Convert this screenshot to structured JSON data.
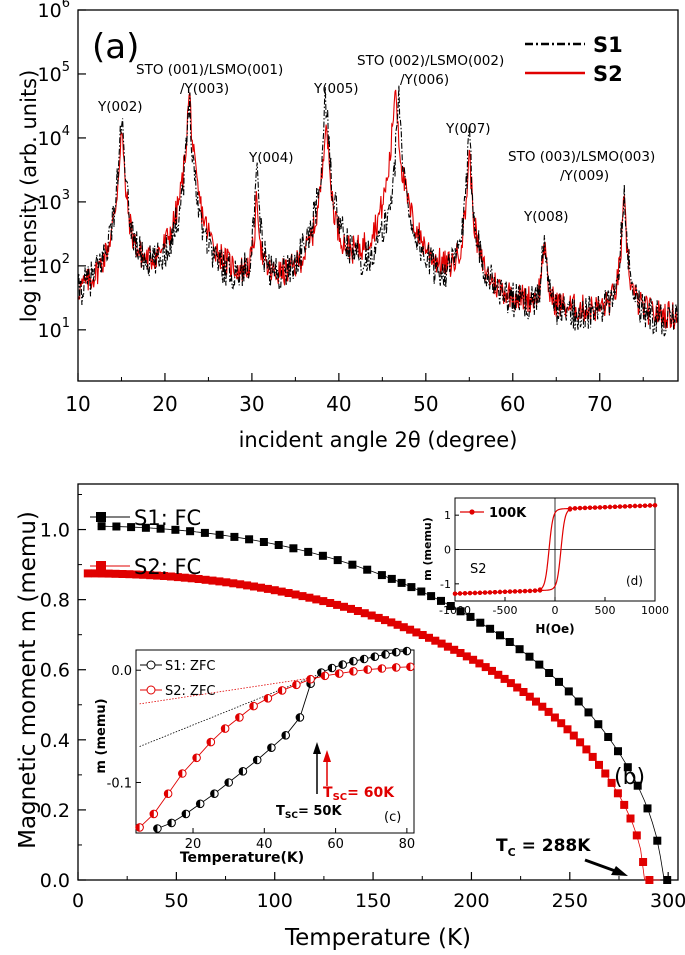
{
  "figure": {
    "caption_top": "(a)",
    "caption_bottom": "(b)"
  },
  "chart_data": [
    {
      "id": "a",
      "type": "line",
      "title": "(a)",
      "xlabel": "incident angle 2θ (degree)",
      "ylabel": "log intensity (arb. units)",
      "xlim": [
        10,
        79
      ],
      "ylim_log10": [
        0.2,
        6
      ],
      "x_ticks": [
        "10",
        "20",
        "30",
        "40",
        "50",
        "60",
        "70"
      ],
      "y_ticks": [
        "10",
        "10",
        "10",
        "10",
        "10",
        "10"
      ],
      "y_exps": [
        "1",
        "2",
        "3",
        "4",
        "5",
        "6"
      ],
      "legend": [
        "S1",
        "S2"
      ],
      "colors": {
        "S1": "#000000",
        "S2": "#e00000"
      },
      "peaks_S1": [
        {
          "x": 15.0,
          "h": 4.3
        },
        {
          "x": 22.8,
          "h": 4.6
        },
        {
          "x": 30.6,
          "h": 3.4
        },
        {
          "x": 38.5,
          "h": 4.6
        },
        {
          "x": 46.9,
          "h": 4.6
        },
        {
          "x": 55.0,
          "h": 3.95
        },
        {
          "x": 63.6,
          "h": 2.5
        },
        {
          "x": 72.8,
          "h": 3.15
        }
      ],
      "peaks_S2": [
        {
          "x": 15.0,
          "h": 4.1
        },
        {
          "x": 22.8,
          "h": 4.65
        },
        {
          "x": 30.6,
          "h": 3.0
        },
        {
          "x": 38.5,
          "h": 4.3
        },
        {
          "x": 46.5,
          "h": 4.8
        },
        {
          "x": 55.0,
          "h": 3.7
        },
        {
          "x": 63.6,
          "h": 2.3
        },
        {
          "x": 72.8,
          "h": 2.9
        }
      ],
      "annotations": [
        {
          "text": "Y(002)"
        },
        {
          "text": "STO (001)/LSMO(001)"
        },
        {
          "text": "/Y(003)"
        },
        {
          "text": "Y(004)"
        },
        {
          "text": "Y(005)"
        },
        {
          "text": "STO (002)/LSMO(002)"
        },
        {
          "text": "/Y(006)"
        },
        {
          "text": "Y(007)"
        },
        {
          "text": "STO (003)/LSMO(003)"
        },
        {
          "text": "/Y(009)"
        },
        {
          "text": "Y(008)"
        }
      ]
    },
    {
      "id": "b",
      "type": "scatter",
      "title": "(b)",
      "xlabel": "Temperature (K)",
      "ylabel": "Magnetic moment m (memu)",
      "xlim": [
        0,
        305
      ],
      "ylim": [
        0,
        1.13
      ],
      "x_ticks": [
        "0",
        "50",
        "100",
        "150",
        "200",
        "250",
        "300"
      ],
      "y_ticks": [
        "0.0",
        "0.2",
        "0.4",
        "0.6",
        "0.8",
        "1.0"
      ],
      "series": [
        {
          "name": "S1: FC",
          "color": "#000000",
          "m0": 1.01,
          "tc": 297
        },
        {
          "name": "S2: FC",
          "color": "#e00000",
          "m0": 0.875,
          "tc": 288
        }
      ],
      "annotation": {
        "main": "T",
        "sub": "C",
        "rest": " = 288K"
      }
    },
    {
      "id": "c",
      "type": "scatter",
      "title": "(c)",
      "xlabel": "Temperature(K)",
      "ylabel": "m (memu)",
      "xlim": [
        4,
        82
      ],
      "ylim": [
        -0.145,
        0.018
      ],
      "x_ticks": [
        "20",
        "40",
        "60",
        "80"
      ],
      "y_ticks": [
        "0.0",
        "-0.1"
      ],
      "series": [
        {
          "name": "S1: ZFC",
          "color": "#000000",
          "points": [
            [
              10,
              -0.141
            ],
            [
              14,
              -0.136
            ],
            [
              18,
              -0.128
            ],
            [
              22,
              -0.119
            ],
            [
              26,
              -0.11
            ],
            [
              30,
              -0.1
            ],
            [
              34,
              -0.09
            ],
            [
              38,
              -0.08
            ],
            [
              42,
              -0.069
            ],
            [
              46,
              -0.058
            ],
            [
              50,
              -0.042
            ],
            [
              53,
              -0.012
            ],
            [
              56,
              -0.002
            ],
            [
              59,
              0.002
            ],
            [
              62,
              0.005
            ],
            [
              65,
              0.008
            ],
            [
              68,
              0.01
            ],
            [
              71,
              0.012
            ],
            [
              74,
              0.014
            ],
            [
              77,
              0.016
            ],
            [
              80,
              0.017
            ]
          ]
        },
        {
          "name": "S2: ZFC",
          "color": "#e00000",
          "points": [
            [
              5,
              -0.14
            ],
            [
              9,
              -0.128
            ],
            [
              13,
              -0.11
            ],
            [
              17,
              -0.092
            ],
            [
              21,
              -0.078
            ],
            [
              25,
              -0.064
            ],
            [
              29,
              -0.052
            ],
            [
              33,
              -0.042
            ],
            [
              37,
              -0.032
            ],
            [
              41,
              -0.025
            ],
            [
              45,
              -0.018
            ],
            [
              49,
              -0.013
            ],
            [
              53,
              -0.008
            ],
            [
              57,
              -0.005
            ],
            [
              61,
              -0.003
            ],
            [
              65,
              -0.001
            ],
            [
              69,
              0.0005
            ],
            [
              73,
              0.0015
            ],
            [
              77,
              0.0025
            ],
            [
              81,
              0.003
            ]
          ]
        }
      ],
      "annotations": [
        {
          "main": "T",
          "sub": "SC",
          "rest": "= 50K",
          "color": "#000000"
        },
        {
          "main": "T",
          "sub": "SC",
          "rest": "= 60K",
          "color": "#e00000"
        }
      ]
    },
    {
      "id": "d",
      "type": "line",
      "title": "(d)",
      "xlabel": "H(Oe)",
      "ylabel": "m (memu)",
      "xlim": [
        -1000,
        1000
      ],
      "ylim": [
        -1.5,
        1.5
      ],
      "x_ticks": [
        "-1000",
        "-500",
        "0",
        "500",
        "1000"
      ],
      "y_ticks": [
        "-1",
        "0",
        "1"
      ],
      "legend": "100K",
      "label": "S2",
      "color": "#e00000",
      "msat": 1.28,
      "coercive": 60
    }
  ]
}
